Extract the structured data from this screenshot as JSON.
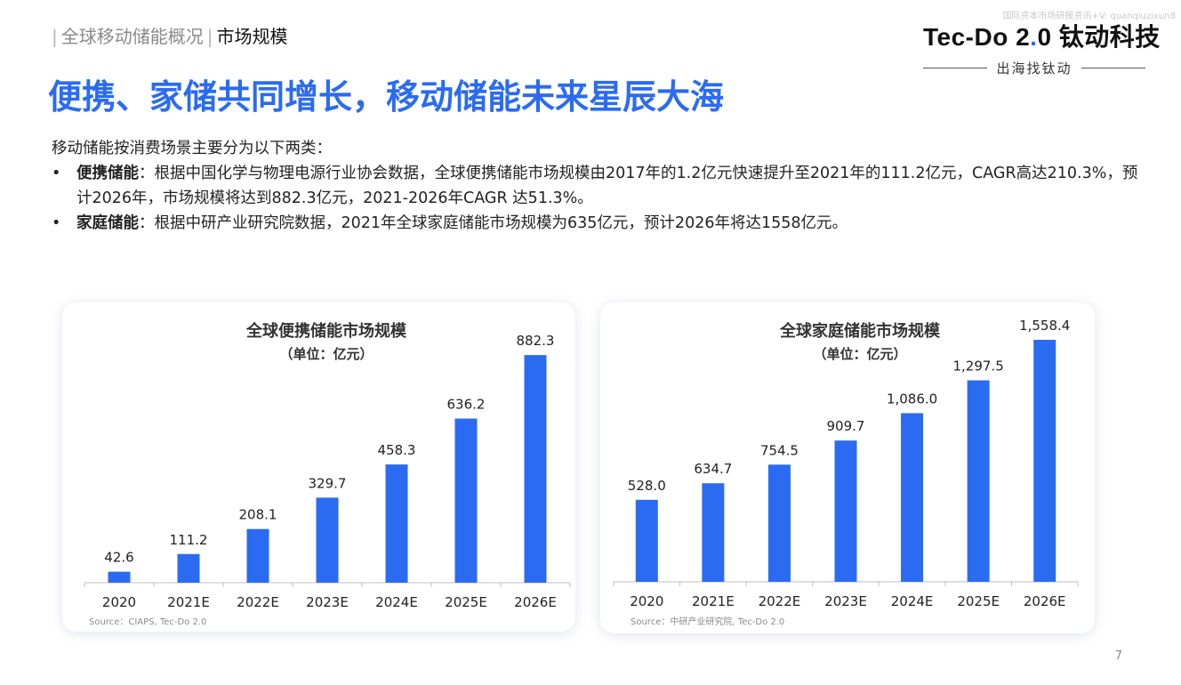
{
  "watermark": "国际资本市场研报资讯+V: quanqiuzixun8",
  "breadcrumb": {
    "section": "全球移动储能概况",
    "current": "市场规模"
  },
  "logo": {
    "brand_pre": "Tec-Do 2",
    "brand_dot": ".",
    "brand_post": "0",
    "brand_cn": " 钛动科技",
    "slogan": "出海找钛动"
  },
  "headline": "便携、家储共同增长，移动储能未来星辰大海",
  "intro": {
    "lead": "移动储能按消费场景主要分为以下两类：",
    "items": [
      {
        "term": "便携储能",
        "text": "：根据中国化学与物理电源行业协会数据，全球便携储能市场规模由2017年的1.2亿元快速提升至2021年的111.2亿元，CAGR高达210.3%，预计2026年，市场规模将达到882.3亿元，2021-2026年CAGR 达51.3%。"
      },
      {
        "term": "家庭储能",
        "text": "：根据中研产业研究院数据，2021年全球家庭储能市场规模为635亿元，预计2026年将达1558亿元。"
      }
    ]
  },
  "page_number": "7",
  "colors": {
    "accent": "#2a6bf2",
    "bar": "#2a6bf2",
    "axis": "#bfbfbf",
    "text": "#222222",
    "muted": "#8a8a8a"
  },
  "chart_data": [
    {
      "type": "bar",
      "title": "全球便携储能市场规模",
      "subtitle": "（单位：亿元）",
      "categories": [
        "2020",
        "2021E",
        "2022E",
        "2023E",
        "2024E",
        "2025E",
        "2026E"
      ],
      "values": [
        42.6,
        111.2,
        208.1,
        329.7,
        458.3,
        636.2,
        882.3
      ],
      "value_labels": [
        "42.6",
        "111.2",
        "208.1",
        "329.7",
        "458.3",
        "636.2",
        "882.3"
      ],
      "ylim": [
        0,
        1000
      ],
      "grid": false,
      "source": "Source：CIAPS, Tec-Do 2.0"
    },
    {
      "type": "bar",
      "title": "全球家庭储能市场规模",
      "subtitle": "（单位：亿元）",
      "categories": [
        "2020",
        "2021E",
        "2022E",
        "2023E",
        "2024E",
        "2025E",
        "2026E"
      ],
      "values": [
        528.0,
        634.7,
        754.5,
        909.7,
        1086.0,
        1297.5,
        1558.4
      ],
      "value_labels": [
        "528.0",
        "634.7",
        "754.5",
        "909.7",
        "1,086.0",
        "1,297.5",
        "1,558.4"
      ],
      "ylim": [
        0,
        1650
      ],
      "grid": false,
      "source": "Source：中研产业研究院, Tec-Do 2.0"
    }
  ]
}
